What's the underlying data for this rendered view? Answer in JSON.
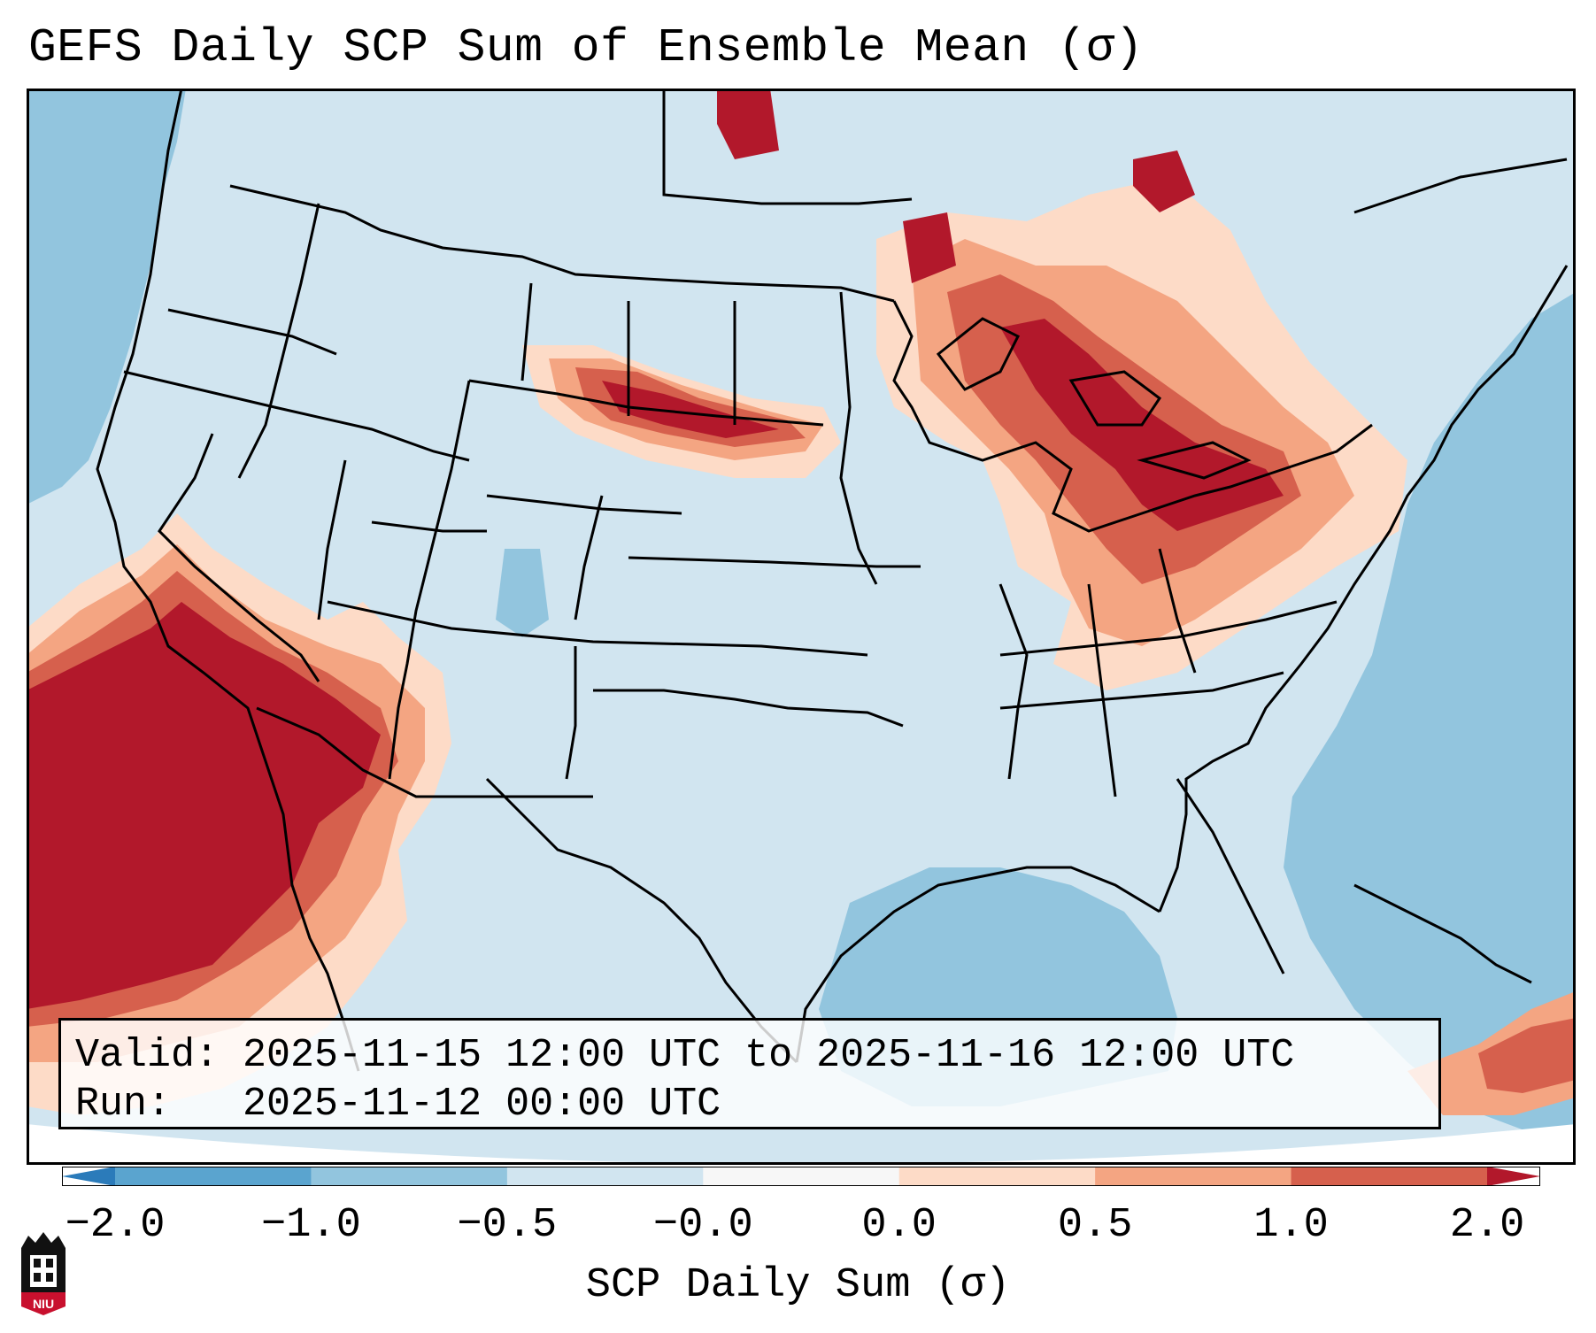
{
  "title": "GEFS Daily SCP Sum of Ensemble Mean (σ)",
  "info": {
    "valid_line": "Valid: 2025-11-15 12:00 UTC to 2025-11-16 12:00 UTC",
    "run_line": "Run:   2025-11-12 00:00 UTC"
  },
  "colorbar": {
    "label": "SCP Daily Sum (σ)",
    "ticks": [
      "−2.0",
      "−1.0",
      "−0.5",
      "−0.0",
      "0.0",
      "0.5",
      "1.0",
      "2.0"
    ],
    "colors": [
      "#2b7bba",
      "#5aa4cf",
      "#92c5de",
      "#d1e5f0",
      "#f7f7f7",
      "#fddbc7",
      "#f4a582",
      "#d6604d",
      "#b2182b"
    ]
  },
  "logo": {
    "text": "NIU"
  },
  "map": {
    "region": "Continental United States",
    "legend_colors": {
      "ocean_low": "#92c5de",
      "land_neutral": "#d1e5f0",
      "low_pos": "#fddbc7",
      "mid_pos": "#f4a582",
      "high_pos": "#d6604d",
      "max_pos": "#b2182b"
    }
  }
}
